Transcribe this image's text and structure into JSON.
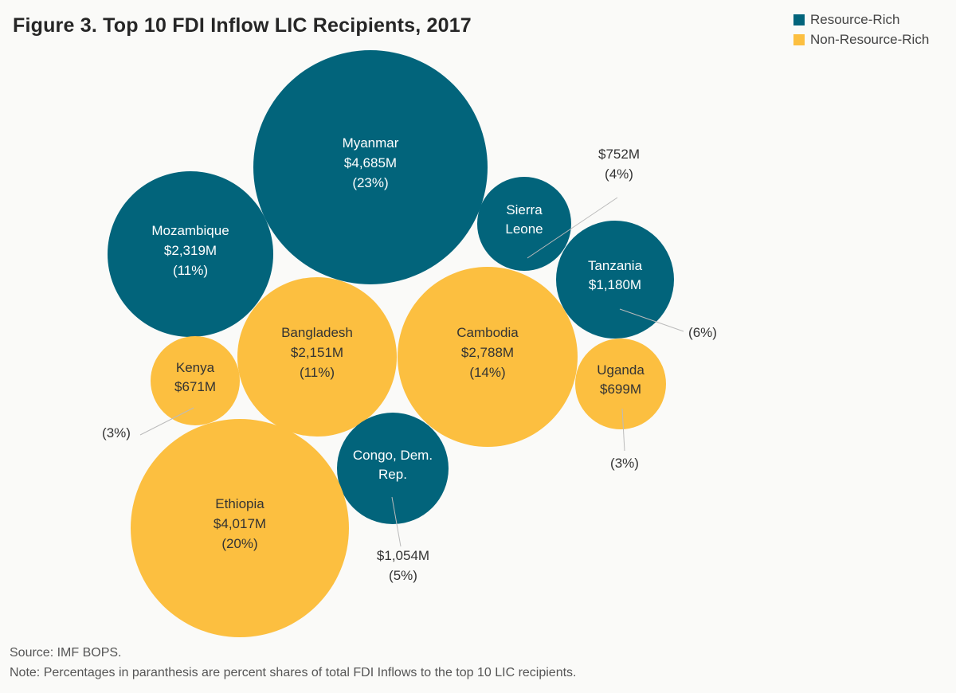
{
  "title": "Figure 3. Top 10 FDI Inflow LIC Recipients, 2017",
  "legend": {
    "resource_rich": "Resource-Rich",
    "non_resource_rich": "Non-Resource-Rich"
  },
  "colors": {
    "resource_rich": "#02647b",
    "non_resource_rich": "#fcbf40",
    "text_on_dark": "#ffffff",
    "text_on_light": "#333333",
    "leader": "#bbbbbb"
  },
  "chart_data": {
    "type": "bubble",
    "title": "Figure 3. Top 10 FDI Inflow LIC Recipients, 2017",
    "unit": "US$ millions",
    "series": [
      {
        "country": "Myanmar",
        "value_label": "$4,685M",
        "share_label": "(23%)",
        "value": 4685,
        "share": 23,
        "group": "resource_rich"
      },
      {
        "country": "Mozambique",
        "value_label": "$2,319M",
        "share_label": "(11%)",
        "value": 2319,
        "share": 11,
        "group": "resource_rich"
      },
      {
        "country": "Sierra Leone",
        "value_label": "$752M",
        "share_label": "(4%)",
        "value": 752,
        "share": 4,
        "group": "resource_rich"
      },
      {
        "country": "Tanzania",
        "value_label": "$1,180M",
        "share_label": "(6%)",
        "value": 1180,
        "share": 6,
        "group": "resource_rich"
      },
      {
        "country": "Bangladesh",
        "value_label": "$2,151M",
        "share_label": "(11%)",
        "value": 2151,
        "share": 11,
        "group": "non_resource_rich"
      },
      {
        "country": "Cambodia",
        "value_label": "$2,788M",
        "share_label": "(14%)",
        "value": 2788,
        "share": 14,
        "group": "non_resource_rich"
      },
      {
        "country": "Kenya",
        "value_label": "$671M",
        "share_label": "(3%)",
        "value": 671,
        "share": 3,
        "group": "non_resource_rich"
      },
      {
        "country": "Uganda",
        "value_label": "$699M",
        "share_label": "(3%)",
        "value": 699,
        "share": 3,
        "group": "non_resource_rich"
      },
      {
        "country": "Congo, Dem. Rep.",
        "value_label": "$1,054M",
        "share_label": "(5%)",
        "value": 1054,
        "share": 5,
        "group": "resource_rich"
      },
      {
        "country": "Ethiopia",
        "value_label": "$4,017M",
        "share_label": "(20%)",
        "value": 4017,
        "share": 20,
        "group": "non_resource_rich"
      }
    ]
  },
  "footer": {
    "source": "Source: IMF BOPS.",
    "note": "Note: Percentages in paranthesis are percent shares of total FDI Inflows to the top 10 LIC recipients."
  }
}
